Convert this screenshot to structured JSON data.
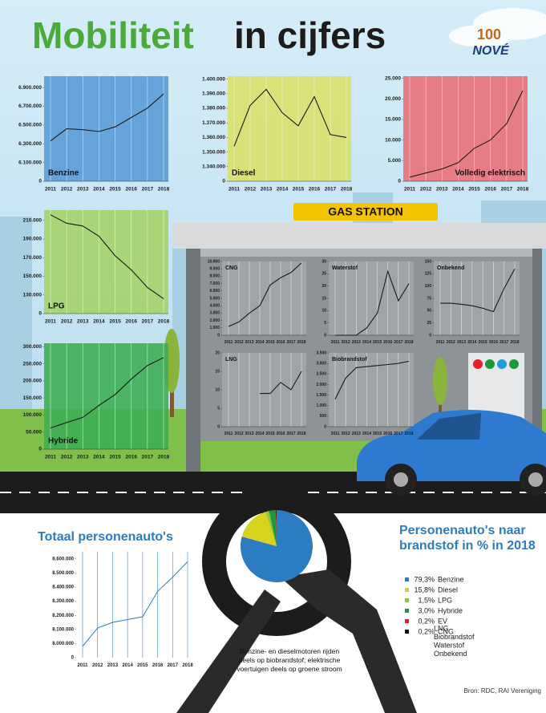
{
  "title_main": "Mobiliteit",
  "title_rest": "in cijfers",
  "logo_top": "100",
  "logo_bottom": "NOVÉ",
  "sign": "GAS STATION",
  "note": "Benzine- en dieselmotoren rijden deels op biobrandstof; elektrische voertuigen deels op groene stroom",
  "source": "Bron: RDC, RAI Vereniging",
  "chart_data": [
    {
      "type": "line",
      "title": "Benzine",
      "color": "#1a1a1a",
      "background": "#5b9bd8",
      "categories": [
        "2011",
        "2012",
        "2013",
        "2014",
        "2015",
        "2016",
        "2017",
        "2018"
      ],
      "values": [
        6330000,
        6460000,
        6450000,
        6430000,
        6480000,
        6580000,
        6680000,
        6830000
      ],
      "ylim": [
        5900000,
        7020000
      ],
      "yticks": [
        0,
        {
          "value": 6100000,
          "label": "6.100.000"
        },
        {
          "value": 6300000,
          "label": "6.300.000"
        },
        {
          "value": 6500000,
          "label": "6.500.000"
        },
        {
          "value": 6700000,
          "label": "6.700.000"
        },
        {
          "value": 6900000,
          "label": "6.900.000"
        }
      ]
    },
    {
      "type": "line",
      "title": "Diesel",
      "color": "#1a1a1a",
      "background": "#d9e06a",
      "categories": [
        "2011",
        "2012",
        "2013",
        "2014",
        "2015",
        "2016",
        "2017",
        "2018"
      ],
      "values": [
        1354000,
        1382000,
        1393000,
        1377000,
        1368000,
        1388000,
        1362000,
        1360000
      ],
      "ylim": [
        1330000,
        1402000
      ],
      "yticks": [
        0,
        {
          "value": 1340000,
          "label": "1.340.000"
        },
        {
          "value": 1350000,
          "label": "1.350.000"
        },
        {
          "value": 1360000,
          "label": "1.360.000"
        },
        {
          "value": 1370000,
          "label": "1.370.000"
        },
        {
          "value": 1380000,
          "label": "1.380.000"
        },
        {
          "value": 1390000,
          "label": "1.390.000"
        },
        {
          "value": 1400000,
          "label": "1.400.000"
        }
      ]
    },
    {
      "type": "line",
      "title": "Volledig elektrisch",
      "color": "#1a1a1a",
      "background": "#e8707a",
      "categories": [
        "2011",
        "2012",
        "2013",
        "2014",
        "2015",
        "2016",
        "2017",
        "2018"
      ],
      "values": [
        1000,
        2000,
        3000,
        4500,
        8000,
        10000,
        14000,
        22000
      ],
      "ylim": [
        0,
        25500
      ],
      "yticks": [
        0,
        {
          "value": 5000,
          "label": "5.000"
        },
        {
          "value": 10000,
          "label": "10.000"
        },
        {
          "value": 15000,
          "label": "15.000"
        },
        {
          "value": 20000,
          "label": "20.000"
        },
        {
          "value": 25000,
          "label": "25.000"
        }
      ]
    },
    {
      "type": "line",
      "title": "LPG",
      "color": "#1a1a1a",
      "background": "#a6d26a",
      "categories": [
        "2011",
        "2012",
        "2013",
        "2014",
        "2015",
        "2016",
        "2017",
        "2018"
      ],
      "values": [
        216000,
        207000,
        204000,
        193000,
        172000,
        157000,
        138000,
        126000
      ],
      "ylim": [
        110000,
        221000
      ],
      "yticks": [
        0,
        {
          "value": 130000,
          "label": "130.000"
        },
        {
          "value": 150000,
          "label": "150.000"
        },
        {
          "value": 170000,
          "label": "170.000"
        },
        {
          "value": 190000,
          "label": "190.000"
        },
        {
          "value": 210000,
          "label": "210.000"
        }
      ]
    },
    {
      "type": "line",
      "title": "Hybride",
      "color": "#1a1a1a",
      "background": "#3fae54",
      "categories": [
        "2011",
        "2012",
        "2013",
        "2014",
        "2015",
        "2016",
        "2017",
        "2018"
      ],
      "values": [
        62000,
        78000,
        93000,
        128000,
        160000,
        205000,
        245000,
        268000
      ],
      "ylim": [
        0,
        310000
      ],
      "yticks": [
        0,
        {
          "value": 50000,
          "label": "50.000"
        },
        {
          "value": 100000,
          "label": "100.000"
        },
        {
          "value": 150000,
          "label": "150.000"
        },
        {
          "value": 200000,
          "label": "200.000"
        },
        {
          "value": 250000,
          "label": "250.000"
        },
        {
          "value": 300000,
          "label": "300.000"
        }
      ]
    },
    {
      "type": "line",
      "title": "CNG",
      "color": "#1a1a1a",
      "background": "#a3a6a8",
      "categories": [
        "2011",
        "2012",
        "2013",
        "2014",
        "2015",
        "2016",
        "2017",
        "2018"
      ],
      "values": [
        1200,
        1800,
        3000,
        4000,
        6800,
        7800,
        8500,
        9800
      ],
      "ylim": [
        0,
        10000
      ],
      "yticks": [
        0,
        {
          "value": 1000,
          "label": "1.000"
        },
        {
          "value": 2000,
          "label": "2.000"
        },
        {
          "value": 3000,
          "label": "3.000"
        },
        {
          "value": 4000,
          "label": "4.000"
        },
        {
          "value": 5000,
          "label": "5.000"
        },
        {
          "value": 6000,
          "label": "6.000"
        },
        {
          "value": 7000,
          "label": "7.000"
        },
        {
          "value": 8000,
          "label": "8.000"
        },
        {
          "value": 9000,
          "label": "9.000"
        },
        {
          "value": 10000,
          "label": "10.000"
        }
      ]
    },
    {
      "type": "line",
      "title": "Waterstof",
      "color": "#1a1a1a",
      "background": "#a3a6a8",
      "categories": [
        "2011",
        "2012",
        "2013",
        "2014",
        "2015",
        "2016",
        "2017",
        "2018"
      ],
      "values": [
        0,
        0,
        0,
        3,
        9,
        26,
        14,
        21
      ],
      "ylim": [
        0,
        30
      ],
      "yticks": [
        0,
        5,
        10,
        15,
        20,
        25,
        30
      ]
    },
    {
      "type": "line",
      "title": "Onbekend",
      "color": "#1a1a1a",
      "background": "#a3a6a8",
      "categories": [
        "2011",
        "2012",
        "2013",
        "2014",
        "2015",
        "2016",
        "2017",
        "2018"
      ],
      "values": [
        65,
        65,
        63,
        60,
        55,
        48,
        95,
        135
      ],
      "ylim": [
        0,
        150
      ],
      "yticks": [
        0,
        25,
        50,
        75,
        100,
        125,
        150
      ]
    },
    {
      "type": "line",
      "title": "LNG",
      "color": "#1a1a1a",
      "background": "#a3a6a8",
      "categories": [
        "2011",
        "2012",
        "2013",
        "2014",
        "2015",
        "2016",
        "2017",
        "2018"
      ],
      "values": [
        null,
        null,
        null,
        9,
        9,
        12,
        10,
        15
      ],
      "ylim": [
        0,
        20
      ],
      "yticks": [
        0,
        5,
        10,
        15,
        20
      ]
    },
    {
      "type": "line",
      "title": "Biobrandstof",
      "color": "#1a1a1a",
      "background": "#a3a6a8",
      "categories": [
        "2011",
        "2012",
        "2013",
        "2014",
        "2015",
        "2016",
        "2017",
        "2018"
      ],
      "values": [
        1300,
        2300,
        2800,
        2850,
        2900,
        2950,
        3000,
        3100
      ],
      "ylim": [
        0,
        3500
      ],
      "yticks": [
        0,
        500,
        {
          "value": 1000,
          "label": "1.000"
        },
        {
          "value": 1500,
          "label": "1.500"
        },
        {
          "value": 2000,
          "label": "2.000"
        },
        {
          "value": 2500,
          "label": "2.500"
        },
        {
          "value": 3000,
          "label": "3.000"
        },
        {
          "value": 3500,
          "label": "3.500"
        }
      ]
    },
    {
      "type": "line",
      "title": "Totaal personenauto's",
      "color": "#2b7cc1",
      "background": "#ffffff",
      "categories": [
        "2011",
        "2012",
        "2013",
        "2014",
        "2015",
        "2016",
        "2017",
        "2018"
      ],
      "values": [
        7980000,
        8110000,
        8150000,
        8170000,
        8190000,
        8370000,
        8470000,
        8580000
      ],
      "ylim": [
        7900000,
        8650000
      ],
      "yticks": [
        0,
        {
          "value": 8000000,
          "label": "8.000.000"
        },
        {
          "value": 8100000,
          "label": "8.100.000"
        },
        {
          "value": 8200000,
          "label": "8.200.000"
        },
        {
          "value": 8300000,
          "label": "8.300.000"
        },
        {
          "value": 8400000,
          "label": "8.400.000"
        },
        {
          "value": 8500000,
          "label": "8.500.000"
        },
        {
          "value": 8600000,
          "label": "8.600.000"
        }
      ]
    },
    {
      "type": "pie",
      "title": "Personenauto's naar brandstof in % in 2018",
      "categories": [
        "Benzine",
        "Diesel",
        "LPG",
        "Hybride",
        "EV",
        "CNG"
      ],
      "values": [
        79.3,
        15.8,
        1.5,
        3.0,
        0.2,
        0.2
      ],
      "value_labels": [
        "79,3%",
        "15,8%",
        "1,5%",
        "3,0%",
        "0,2%",
        "0,2%"
      ],
      "colors": [
        "#2b7cc1",
        "#d6d41e",
        "#8dc63f",
        "#1a9a3a",
        "#e4202a",
        "#111111"
      ],
      "extra_names": [
        "LNG",
        "Biobrandstof",
        "Waterstof",
        "Onbekend"
      ]
    }
  ]
}
